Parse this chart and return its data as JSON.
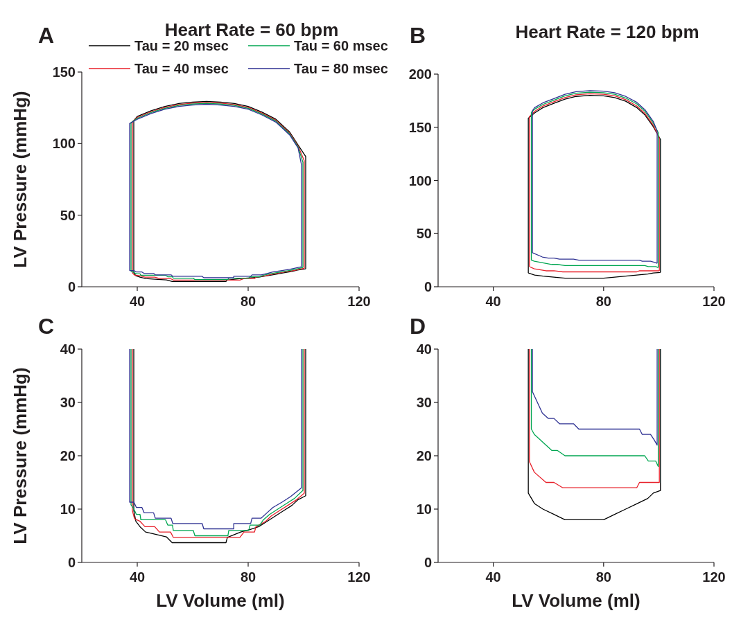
{
  "chart_data": [
    {
      "type": "line",
      "title": "Heart Rate = 60 bpm",
      "ylabel": "LV Pressure (mmHg)",
      "annotations": [
        "A"
      ],
      "xlim": [
        20,
        120
      ],
      "xticks": [
        40,
        80,
        120
      ],
      "ylim": [
        0,
        150
      ],
      "yticks": [
        0,
        50,
        100,
        150
      ],
      "legend": "top",
      "series": [
        {
          "name": "Tau = 20 msec",
          "color": "#000000",
          "x": [
            38.75,
            38.75,
            40,
            45,
            50,
            55,
            60,
            65,
            70,
            75,
            80,
            85,
            90,
            95,
            98,
            100.75,
            100.75,
            null,
            38.75,
            39.5,
            41,
            43,
            45.5,
            50.5,
            52.6,
            72,
            72.5,
            77.3,
            80.8,
            83.8,
            86.8,
            89.8,
            92.8,
            95.8,
            97.8,
            100.75
          ],
          "values": [
            9.7,
            116,
            119,
            123,
            126,
            128,
            129,
            129.5,
            129,
            128,
            126,
            122,
            117,
            108,
            99,
            91,
            12.5,
            null,
            9.7,
            7.7,
            6.7,
            5.7,
            5.4,
            4.8,
            3.7,
            3.7,
            4.7,
            5.7,
            6.2,
            6.7,
            7.7,
            8.7,
            9.7,
            10.7,
            11.7,
            12.5
          ]
        },
        {
          "name": "Tau = 40 msec",
          "color": "#e8202a",
          "x": [
            38.25,
            38.25,
            40,
            45,
            50,
            55,
            60,
            65,
            70,
            75,
            80,
            85,
            90,
            95,
            98,
            100.25,
            100.25,
            null,
            38.25,
            39,
            41,
            42.8,
            46.3,
            48,
            52,
            53,
            77,
            78.5,
            82.3,
            82.8,
            86.3,
            88.3,
            91.3,
            94.3,
            97.3,
            100.25
          ],
          "values": [
            9.7,
            115.3,
            118.3,
            122.3,
            125.3,
            127.3,
            128.3,
            128.8,
            128.3,
            127.3,
            125.3,
            121.3,
            116.3,
            107.3,
            98.3,
            88,
            13,
            null,
            9.7,
            8.2,
            7.7,
            6.7,
            6.7,
            5.7,
            5.7,
            4.7,
            4.7,
            5.7,
            5.7,
            6.7,
            7.7,
            8.7,
            9.7,
            10.7,
            11.7,
            13
          ]
        },
        {
          "name": "Tau = 60 msec",
          "color": "#00a651",
          "x": [
            37.75,
            37.75,
            40,
            45,
            50,
            55,
            60,
            65,
            70,
            75,
            80,
            85,
            90,
            95,
            98,
            99.75,
            99.75,
            null,
            37.75,
            38.8,
            39.7,
            41,
            41.3,
            50.2,
            51,
            52.7,
            53,
            60.2,
            60.8,
            72.7,
            73,
            80.2,
            80.7,
            84.2,
            85.5,
            87.7,
            90.7,
            93.7,
            96.7,
            99.75
          ],
          "values": [
            10.8,
            114.7,
            117.7,
            121.7,
            124.7,
            126.7,
            127.7,
            128.2,
            127.7,
            126.7,
            124.7,
            120.7,
            115.7,
            106.7,
            97.7,
            87,
            13.5,
            null,
            10.8,
            10,
            9,
            9,
            8,
            8,
            7,
            7,
            6,
            6,
            5,
            5,
            6,
            6,
            7,
            7,
            8,
            9,
            10,
            11,
            12,
            13.5
          ]
        },
        {
          "name": "Tau = 80 msec",
          "color": "#2e3192",
          "x": [
            37.25,
            37.25,
            40,
            45,
            50,
            55,
            60,
            65,
            70,
            75,
            80,
            85,
            90,
            95,
            98,
            99.25,
            99.25,
            null,
            37.25,
            38.8,
            39.7,
            41.7,
            42.5,
            45.9,
            46.5,
            52.2,
            52.8,
            63.4,
            64,
            74.8,
            74.8,
            80.9,
            81.4,
            84.7,
            86.8,
            88.9,
            92.2,
            95.2,
            99.25
          ],
          "values": [
            11.3,
            114,
            117,
            121,
            124,
            126,
            127,
            127.5,
            127,
            126,
            124,
            120,
            115,
            106,
            97,
            85,
            14,
            null,
            11.3,
            11.3,
            10.3,
            10.3,
            9.3,
            9.3,
            8.3,
            8.3,
            7.3,
            7.3,
            6.3,
            6.3,
            7.3,
            7.3,
            8.3,
            8.3,
            9.3,
            10.3,
            11.3,
            12.3,
            14
          ]
        }
      ]
    },
    {
      "type": "line",
      "title": "Heart Rate = 120 bpm",
      "annotations": [
        "B"
      ],
      "xlim": [
        20,
        120
      ],
      "xticks": [
        40,
        80,
        120
      ],
      "ylim": [
        0,
        200
      ],
      "yticks": [
        0,
        50,
        100,
        150,
        200
      ],
      "series": [
        {
          "color": "#000000",
          "x": [
            52.7,
            52.7,
            55,
            58,
            62,
            66,
            70,
            75,
            80,
            84,
            88,
            92,
            95,
            98,
            100.6,
            100.6,
            null,
            52.7,
            55,
            58,
            62,
            66,
            80,
            84,
            88,
            92,
            96,
            98,
            100.6
          ],
          "values": [
            13,
            158.5,
            163.5,
            168.5,
            172.5,
            176.5,
            179,
            180,
            179.5,
            178,
            174.5,
            168.5,
            161.5,
            150.5,
            138.5,
            13.5,
            null,
            13,
            11,
            10,
            9,
            8,
            8,
            9,
            10,
            11,
            12,
            13,
            13.5
          ]
        },
        {
          "color": "#e8202a",
          "x": [
            53.1,
            53.1,
            55,
            58,
            62,
            66,
            70,
            75,
            80,
            84,
            88,
            92,
            95,
            98,
            100.2,
            100.2,
            null,
            53.1,
            54.9,
            59.1,
            62,
            65.2,
            92,
            93,
            100.2
          ],
          "values": [
            18.9,
            160,
            165,
            170,
            174,
            178,
            180.5,
            181.5,
            181,
            179.5,
            176,
            170,
            163,
            152,
            140,
            15,
            null,
            18.9,
            16.9,
            15,
            15,
            14,
            14,
            15,
            15
          ]
        },
        {
          "color": "#00a651",
          "x": [
            53.8,
            53.8,
            55,
            58,
            62,
            66,
            70,
            75,
            80,
            84,
            88,
            92,
            95,
            98,
            99.8,
            99.8,
            null,
            53.8,
            54.9,
            61.2,
            63.2,
            66,
            94.9,
            96.2,
            98.9,
            99.8
          ],
          "values": [
            25,
            164,
            167,
            171.5,
            175.5,
            179.5,
            182,
            183,
            182.5,
            181,
            177.5,
            172,
            165,
            154,
            145,
            18,
            null,
            25,
            24,
            21,
            21,
            20,
            20,
            19,
            19,
            18
          ]
        },
        {
          "color": "#2e3192",
          "x": [
            54.2,
            54.2,
            55,
            58,
            62,
            66,
            70,
            75,
            80,
            84,
            88,
            92,
            95,
            98,
            99.4,
            99.4,
            null,
            54.2,
            57.8,
            59.9,
            62,
            64,
            69.1,
            71,
            93,
            94,
            97,
            98.3,
            99.4
          ],
          "values": [
            32,
            165.5,
            168.5,
            173,
            177,
            181,
            183.5,
            184.5,
            184,
            182.5,
            179,
            173.5,
            166.5,
            155.5,
            146.5,
            22,
            null,
            32,
            28,
            27,
            27,
            26,
            26,
            25,
            25,
            24,
            24,
            23,
            22
          ]
        }
      ]
    },
    {
      "type": "line",
      "xlabel": "LV Volume (ml)",
      "ylabel": "LV Pressure (mmHg)",
      "annotations": [
        "C"
      ],
      "xlim": [
        20,
        120
      ],
      "xticks": [
        40,
        80,
        120
      ],
      "ylim": [
        0,
        40
      ],
      "yticks": [
        0,
        10,
        20,
        30,
        40
      ],
      "series": [
        {
          "color": "#000000",
          "x": [
            38.75,
            38.75,
            39.5,
            41,
            43,
            45.5,
            50.5,
            52.6,
            72,
            72.5,
            77.3,
            80.8,
            83.8,
            86.8,
            89.8,
            92.8,
            95.8,
            97.8,
            100.75,
            100.75
          ],
          "values": [
            40,
            9.7,
            7.7,
            6.7,
            5.7,
            5.4,
            4.8,
            3.7,
            3.7,
            4.7,
            5.7,
            6.2,
            6.7,
            7.7,
            8.7,
            9.7,
            10.7,
            11.7,
            12.5,
            40
          ]
        },
        {
          "color": "#e8202a",
          "x": [
            38.25,
            38.25,
            39,
            41,
            42.8,
            46.3,
            48,
            52,
            53,
            77,
            78.5,
            82.3,
            82.8,
            86.3,
            88.3,
            91.3,
            94.3,
            97.3,
            100.25,
            100.25
          ],
          "values": [
            40,
            9.7,
            8.2,
            7.7,
            6.7,
            6.7,
            5.7,
            5.7,
            4.7,
            4.7,
            5.7,
            5.7,
            6.7,
            7.7,
            8.7,
            9.7,
            10.7,
            11.7,
            13,
            40
          ]
        },
        {
          "color": "#00a651",
          "x": [
            37.75,
            37.75,
            38.8,
            39.7,
            41,
            41.3,
            50.2,
            51,
            52.7,
            53,
            60.2,
            60.8,
            72.7,
            73,
            80.2,
            80.7,
            84.2,
            85.5,
            87.7,
            90.7,
            93.7,
            96.7,
            99.75,
            99.75
          ],
          "values": [
            40,
            10.8,
            10,
            9,
            9,
            8,
            8,
            7,
            7,
            6,
            6,
            5,
            5,
            6,
            6,
            7,
            7,
            8,
            9,
            10,
            11,
            12,
            13.5,
            40
          ]
        },
        {
          "color": "#2e3192",
          "x": [
            37.25,
            37.25,
            38.8,
            39.7,
            41.7,
            42.5,
            45.9,
            46.5,
            52.2,
            52.8,
            63.4,
            64,
            74.8,
            74.8,
            80.9,
            81.4,
            84.7,
            86.8,
            88.9,
            92.2,
            95.2,
            99.25,
            99.25
          ],
          "values": [
            40,
            11.3,
            11.3,
            10.3,
            10.3,
            9.3,
            9.3,
            8.3,
            8.3,
            7.3,
            7.3,
            6.3,
            6.3,
            7.3,
            7.3,
            8.3,
            8.3,
            9.3,
            10.3,
            11.3,
            12.3,
            14,
            40
          ]
        }
      ]
    },
    {
      "type": "line",
      "xlabel": "LV Volume (ml)",
      "annotations": [
        "D"
      ],
      "xlim": [
        20,
        120
      ],
      "xticks": [
        40,
        80,
        120
      ],
      "ylim": [
        0,
        40
      ],
      "yticks": [
        0,
        10,
        20,
        30,
        40
      ],
      "series": [
        {
          "color": "#000000",
          "x": [
            52.7,
            52.7,
            55,
            58,
            62,
            66,
            80,
            84,
            88,
            92,
            96,
            98,
            100.6,
            100.6
          ],
          "values": [
            40,
            13,
            11,
            10,
            9,
            8,
            8,
            9,
            10,
            11,
            12,
            13,
            13.5,
            40
          ]
        },
        {
          "color": "#e8202a",
          "x": [
            53.1,
            53.1,
            54.9,
            59.1,
            62,
            65.2,
            92,
            93,
            100.2,
            100.2
          ],
          "values": [
            40,
            18.9,
            16.9,
            15,
            15,
            14,
            14,
            15,
            15,
            40
          ]
        },
        {
          "color": "#00a651",
          "x": [
            53.8,
            53.8,
            54.9,
            61.2,
            63.2,
            66,
            94.9,
            96.2,
            98.9,
            99.8,
            99.8
          ],
          "values": [
            40,
            25,
            24,
            21,
            21,
            20,
            20,
            19,
            19,
            18,
            40
          ]
        },
        {
          "color": "#2e3192",
          "x": [
            54.2,
            54.2,
            57.8,
            59.9,
            62,
            64,
            69.1,
            71,
            93,
            94,
            97,
            98.3,
            99.4,
            99.4
          ],
          "values": [
            40,
            32,
            28,
            27,
            27,
            26,
            26,
            25,
            25,
            24,
            24,
            23,
            22,
            40
          ]
        }
      ]
    }
  ]
}
